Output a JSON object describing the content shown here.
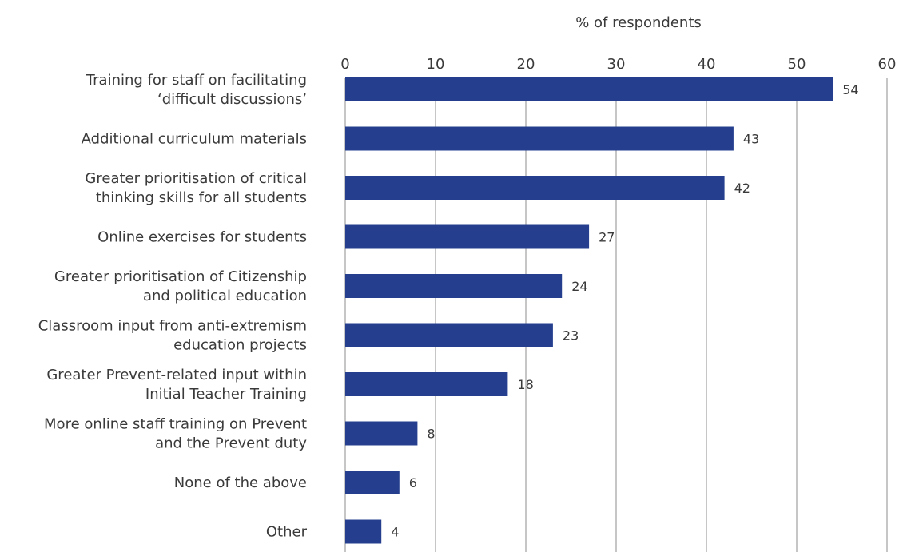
{
  "chart_data": {
    "type": "bar",
    "orientation": "horizontal",
    "xlabel": "% of respondents",
    "xlim": [
      0,
      60
    ],
    "xticks": [
      0,
      10,
      20,
      30,
      40,
      50,
      60
    ],
    "axis_position": "top",
    "grid": true,
    "categories": [
      [
        "Training for staff on facilitating",
        "‘difficult discussions’"
      ],
      [
        "Additional curriculum materials"
      ],
      [
        "Greater prioritisation of critical",
        "thinking skills for all students"
      ],
      [
        "Online exercises for students"
      ],
      [
        "Greater prioritisation of Citizenship",
        "and political education"
      ],
      [
        "Classroom input from anti-extremism",
        "education projects"
      ],
      [
        "Greater Prevent-related input within",
        "Initial Teacher Training"
      ],
      [
        "More online staff training on Prevent",
        "and the Prevent duty"
      ],
      [
        "None of the above"
      ],
      [
        "Other"
      ]
    ],
    "values": [
      54,
      43,
      42,
      27,
      24,
      23,
      18,
      8,
      6,
      4
    ],
    "bar_color": "#253f8e"
  }
}
